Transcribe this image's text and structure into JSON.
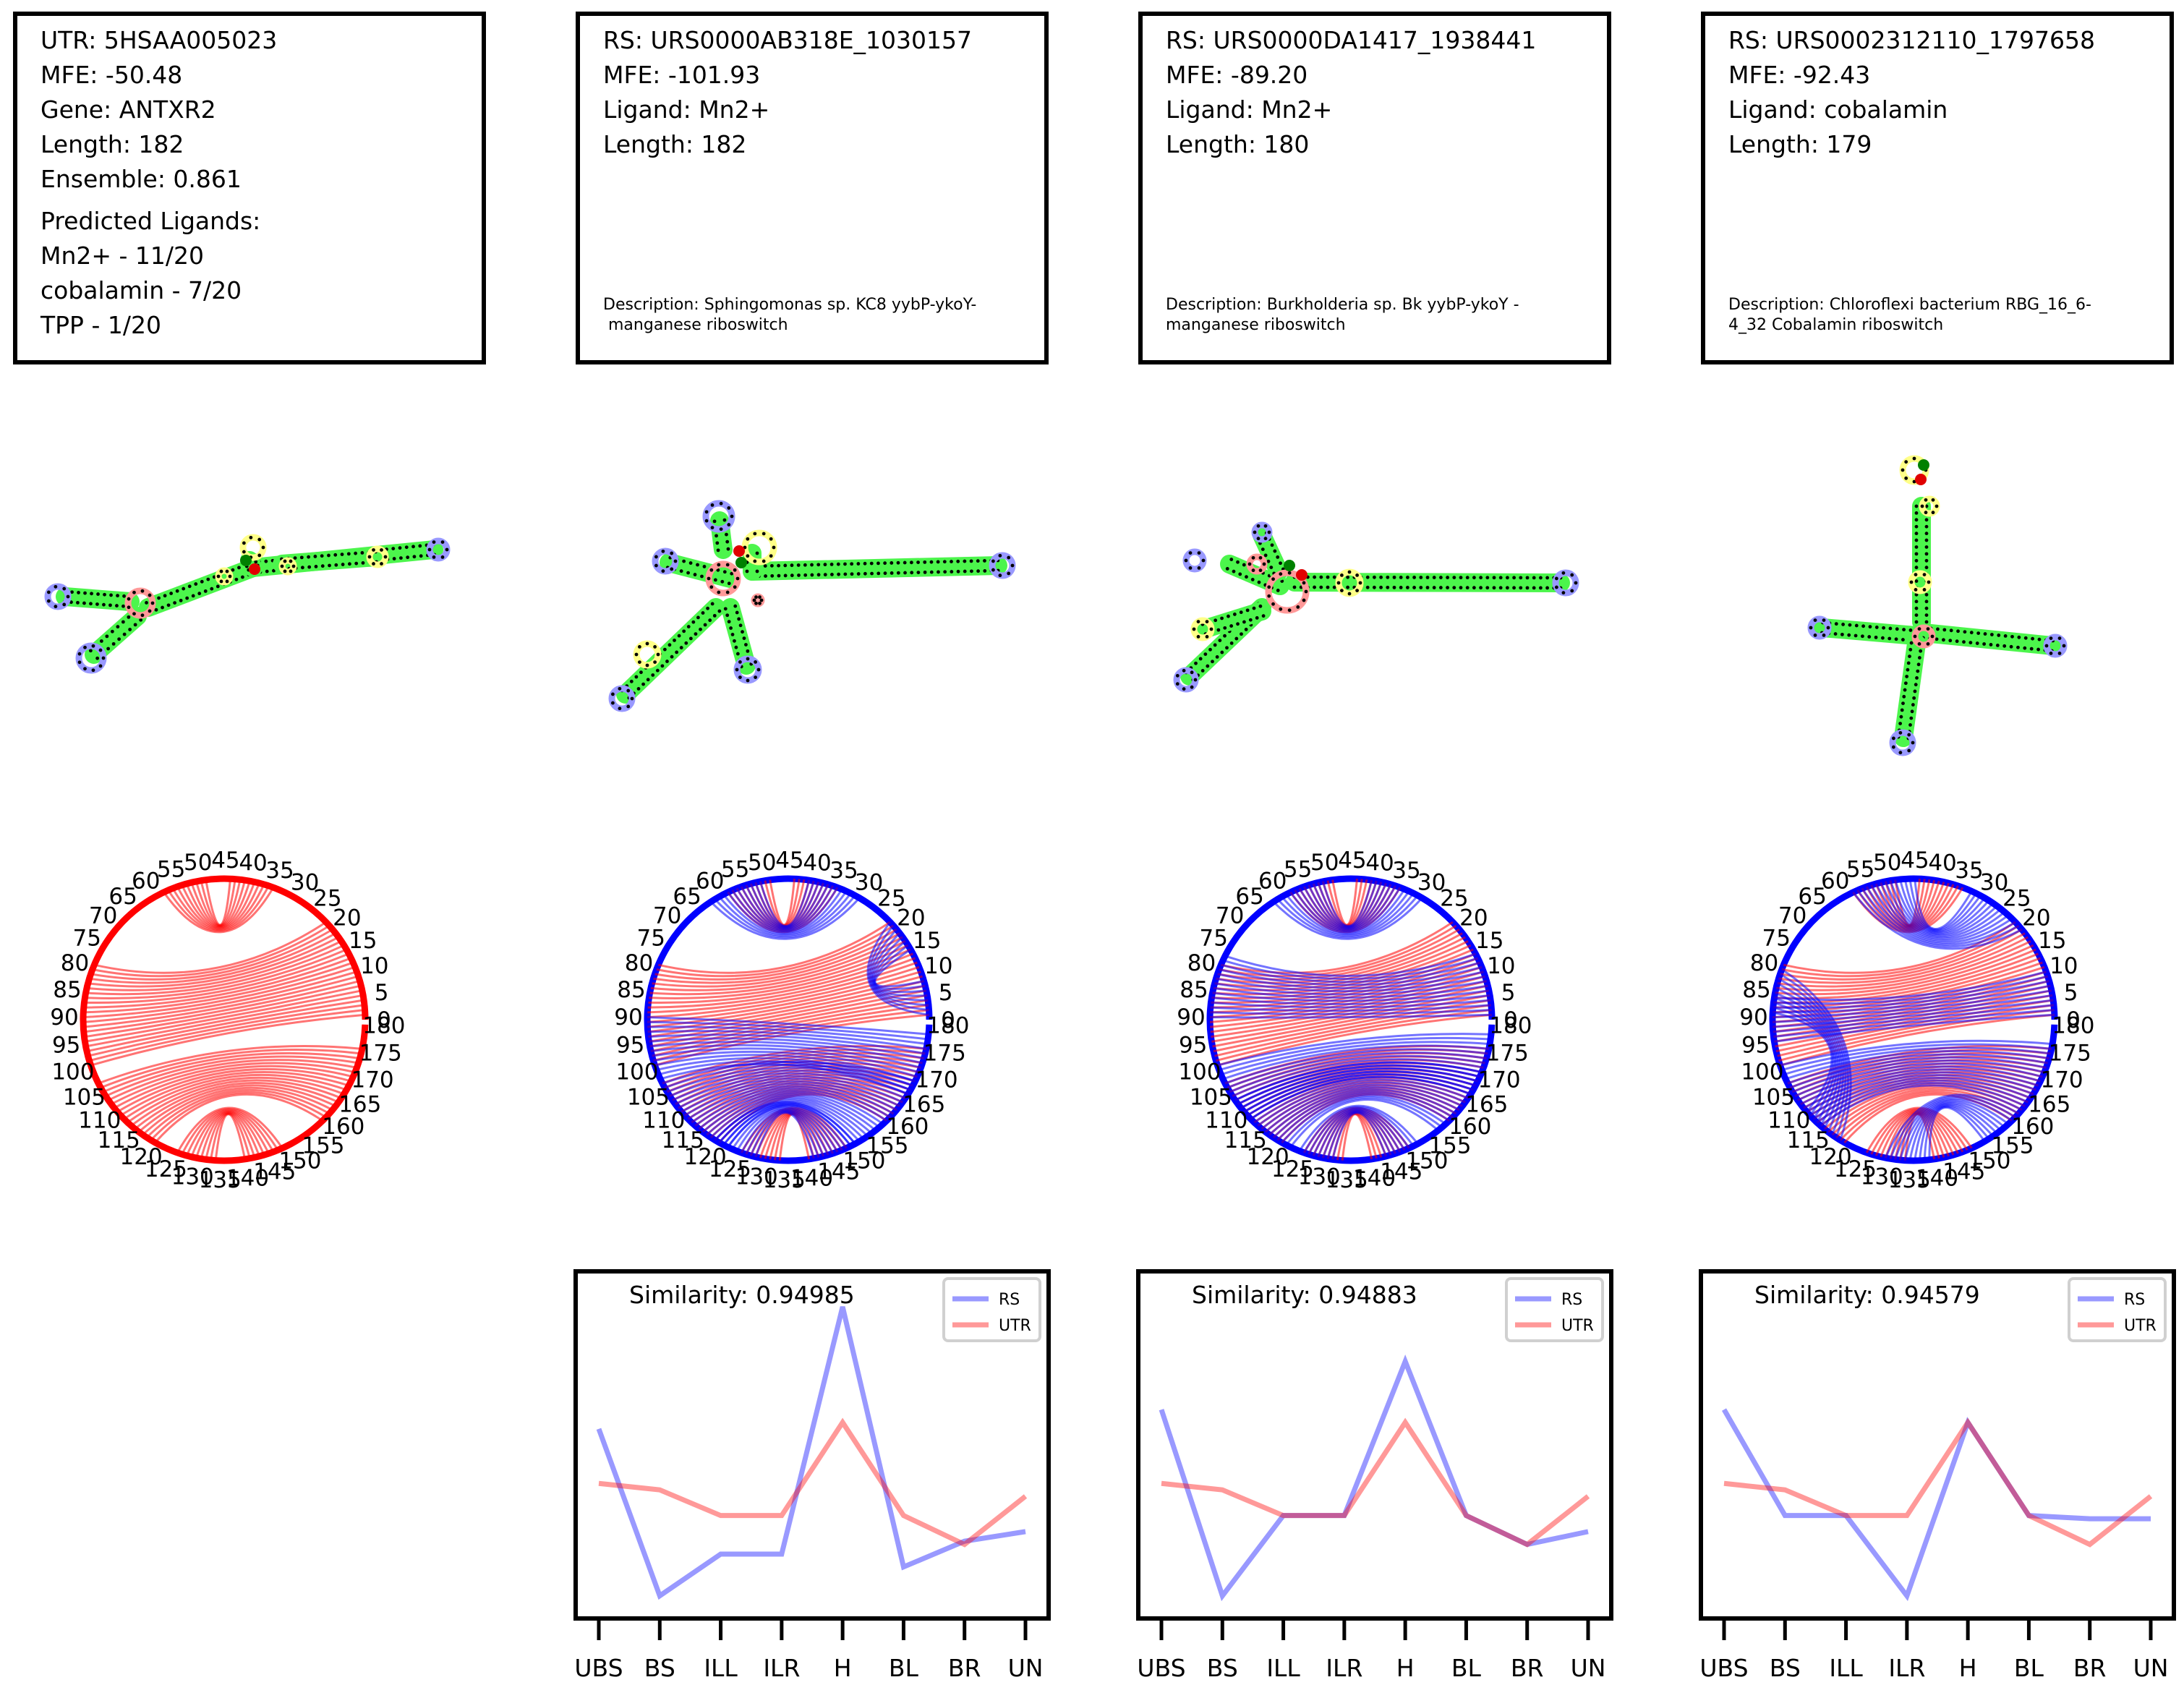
{
  "utr_card": {
    "lines": [
      "UTR: 5HSAA005023",
      "MFE: -50.48",
      "Gene: ANTXR2",
      "Length: 182",
      "Ensemble: 0.861"
    ],
    "pred_title": "Predicted Ligands:",
    "preds": [
      "Mn2+ - 11/20",
      "cobalamin - 7/20",
      "TPP - 1/20"
    ]
  },
  "rs_cards": [
    {
      "lines": [
        "RS: URS0000AB318E_1030157",
        "MFE: -101.93",
        "Ligand: Mn2+",
        "Length: 182"
      ],
      "desc": "Description: Sphingomonas sp. KC8 yybP-ykoY-\n manganese riboswitch"
    },
    {
      "lines": [
        "RS: URS0000DA1417_1938441",
        "MFE: -89.20",
        "Ligand: Mn2+",
        "Length: 180"
      ],
      "desc": "Description: Burkholderia sp. Bk yybP-ykoY -\nmanganese riboswitch"
    },
    {
      "lines": [
        "RS: URS0002312110_1797658",
        "MFE: -92.43",
        "Ligand: cobalamin",
        "Length: 179"
      ],
      "desc": "Description: Chloroflexi bacterium RBG_16_6-\n4_32 Cobalamin riboswitch"
    }
  ],
  "circle_ticks": [
    "0",
    "5",
    "10",
    "15",
    "20",
    "25",
    "30",
    "35",
    "40",
    "45",
    "50",
    "55",
    "60",
    "65",
    "70",
    "75",
    "80",
    "85",
    "90",
    "95",
    "100",
    "105",
    "110",
    "115",
    "120",
    "125",
    "130",
    "135",
    "140",
    "145",
    "150",
    "155",
    "160",
    "165",
    "170",
    "175",
    "180"
  ],
  "colors": {
    "rs": "#0000ff",
    "utr": "#ff0000",
    "stem": "#4cf54c",
    "hairpin": "#9999ff",
    "bulge": "#ffff88",
    "interior": "#ff9999"
  },
  "chart_data": [
    {
      "type": "line",
      "title": "Similarity: 0.94985",
      "categories": [
        "UBS",
        "BS",
        "ILL",
        "ILR",
        "H",
        "BL",
        "BR",
        "UN"
      ],
      "series": [
        {
          "name": "RS",
          "values": [
            0.55,
            0.03,
            0.16,
            0.16,
            0.93,
            0.12,
            0.2,
            0.23
          ]
        },
        {
          "name": "UTR",
          "values": [
            0.38,
            0.36,
            0.28,
            0.28,
            0.57,
            0.28,
            0.19,
            0.34
          ]
        }
      ],
      "legend": "top-right"
    },
    {
      "type": "line",
      "title": "Similarity: 0.94883",
      "categories": [
        "UBS",
        "BS",
        "ILL",
        "ILR",
        "H",
        "BL",
        "BR",
        "UN"
      ],
      "series": [
        {
          "name": "RS",
          "values": [
            0.61,
            0.03,
            0.28,
            0.28,
            0.76,
            0.28,
            0.19,
            0.23
          ]
        },
        {
          "name": "UTR",
          "values": [
            0.38,
            0.36,
            0.28,
            0.28,
            0.57,
            0.28,
            0.19,
            0.34
          ]
        }
      ],
      "legend": "top-right"
    },
    {
      "type": "line",
      "title": "Similarity: 0.94579",
      "categories": [
        "UBS",
        "BS",
        "ILL",
        "ILR",
        "H",
        "BL",
        "BR",
        "UN"
      ],
      "series": [
        {
          "name": "RS",
          "values": [
            0.61,
            0.28,
            0.28,
            0.03,
            0.57,
            0.28,
            0.27,
            0.27
          ]
        },
        {
          "name": "UTR",
          "values": [
            0.38,
            0.36,
            0.28,
            0.28,
            0.57,
            0.28,
            0.19,
            0.34
          ]
        }
      ],
      "legend": "top-right"
    }
  ]
}
